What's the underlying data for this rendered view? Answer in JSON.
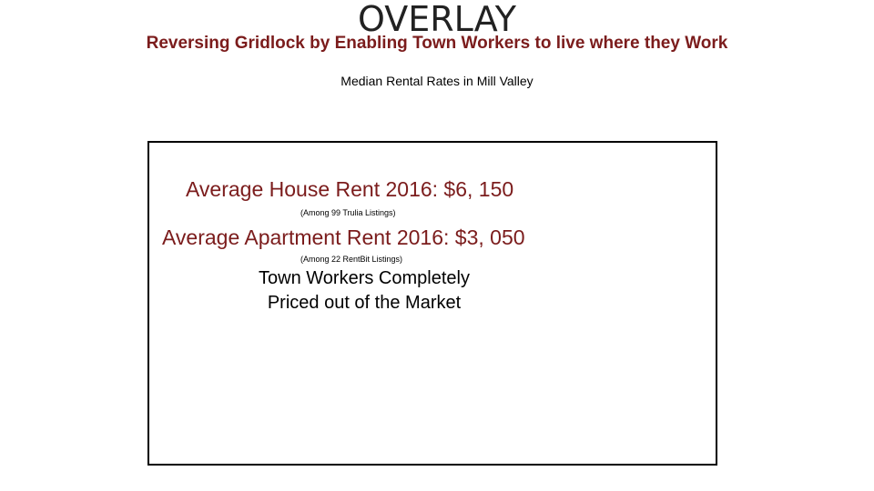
{
  "slide": {
    "title": "OVERLAY",
    "subtitle": "Reversing Gridlock by Enabling Town Workers to live where they Work",
    "section_heading": "Median Rental Rates in Mill  Valley",
    "box": {
      "house_rent": "Average House Rent 2016: $6, 150",
      "house_source": "(Among 99 Trulia Listings)",
      "apartment_rent": "Average Apartment Rent 2016: $3, 050",
      "apartment_source": "(Among 22 RentBit Listings)",
      "conclusion_line1": "Town Workers Completely",
      "conclusion_line2": "Priced out of the Market"
    }
  },
  "colors": {
    "accent": "#7b1c1c",
    "text": "#000000"
  }
}
